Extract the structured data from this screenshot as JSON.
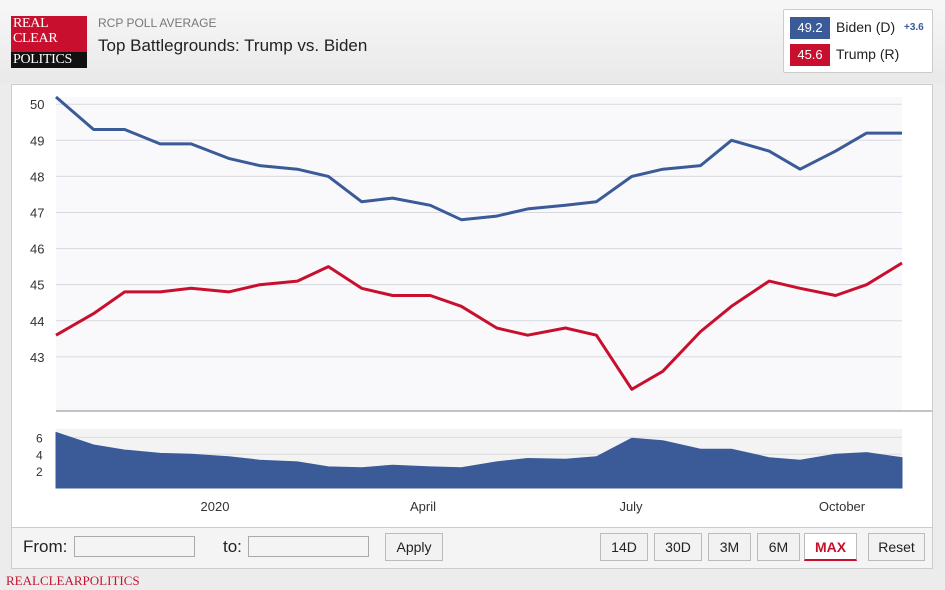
{
  "header": {
    "logo_lines": [
      "REAL",
      "CLEAR",
      "POLITICS"
    ],
    "subtitle": "RCP POLL AVERAGE",
    "title": "Top Battlegrounds: Trump vs. Biden"
  },
  "legend": {
    "biden": {
      "value": "49.2",
      "name": "Biden (D)",
      "spread": "+3.6",
      "color": "#3a5a98"
    },
    "trump": {
      "value": "45.6",
      "name": "Trump (R)",
      "color": "#c8102e"
    }
  },
  "controls": {
    "from_label": "From:",
    "to_label": "to:",
    "from_value": "",
    "to_value": "",
    "apply": "Apply",
    "ranges": [
      "14D",
      "30D",
      "3M",
      "6M",
      "MAX"
    ],
    "active_range": "MAX",
    "reset": "Reset"
  },
  "footer": "REALCLEARPOLITICS",
  "chart_data": [
    {
      "type": "line",
      "x": [
        "2019-10-15",
        "2019-11-01",
        "2019-11-15",
        "2019-12-01",
        "2019-12-15",
        "2020-01-01",
        "2020-01-15",
        "2020-02-01",
        "2020-02-15",
        "2020-03-01",
        "2020-03-15",
        "2020-04-01",
        "2020-04-15",
        "2020-05-01",
        "2020-05-15",
        "2020-06-01",
        "2020-06-15",
        "2020-07-01",
        "2020-07-15",
        "2020-08-01",
        "2020-08-15",
        "2020-09-01",
        "2020-09-15",
        "2020-10-01",
        "2020-10-15",
        "2020-10-31"
      ],
      "series": [
        {
          "name": "Biden (D)",
          "color": "#3a5a98",
          "values": [
            50.2,
            49.3,
            49.3,
            48.9,
            48.9,
            48.5,
            48.3,
            48.2,
            48.0,
            47.3,
            47.4,
            47.2,
            46.8,
            46.9,
            47.1,
            47.2,
            47.3,
            48.0,
            48.2,
            48.3,
            49.0,
            48.7,
            48.2,
            48.7,
            49.2,
            49.2
          ]
        },
        {
          "name": "Trump (R)",
          "color": "#c8102e",
          "values": [
            43.6,
            44.2,
            44.8,
            44.8,
            44.9,
            44.8,
            45.0,
            45.1,
            45.5,
            44.9,
            44.7,
            44.7,
            44.4,
            43.8,
            43.6,
            43.8,
            43.6,
            42.1,
            42.6,
            43.7,
            44.4,
            45.1,
            44.9,
            44.7,
            45.0,
            45.6
          ]
        }
      ],
      "x_tick_labels": [
        "2020",
        "April",
        "July",
        "October"
      ],
      "y_ticks": [
        43,
        44,
        45,
        46,
        47,
        48,
        49,
        50
      ],
      "ylim": [
        41.5,
        50.2
      ],
      "grid": true
    },
    {
      "type": "area",
      "name": "spread",
      "color": "#3a5a98",
      "x": [
        "2019-10-15",
        "2019-11-01",
        "2019-11-15",
        "2019-12-01",
        "2019-12-15",
        "2020-01-01",
        "2020-01-15",
        "2020-02-01",
        "2020-02-15",
        "2020-03-01",
        "2020-03-15",
        "2020-04-01",
        "2020-04-15",
        "2020-05-01",
        "2020-05-15",
        "2020-06-01",
        "2020-06-15",
        "2020-07-01",
        "2020-07-15",
        "2020-08-01",
        "2020-08-15",
        "2020-09-01",
        "2020-09-15",
        "2020-10-01",
        "2020-10-15",
        "2020-10-31"
      ],
      "values": [
        6.6,
        5.1,
        4.5,
        4.1,
        4.0,
        3.7,
        3.3,
        3.1,
        2.5,
        2.4,
        2.7,
        2.5,
        2.4,
        3.1,
        3.5,
        3.4,
        3.7,
        5.9,
        5.6,
        4.6,
        4.6,
        3.6,
        3.3,
        4.0,
        4.2,
        3.6
      ],
      "y_ticks": [
        2,
        4,
        6
      ],
      "ylim": [
        0,
        7
      ]
    }
  ]
}
